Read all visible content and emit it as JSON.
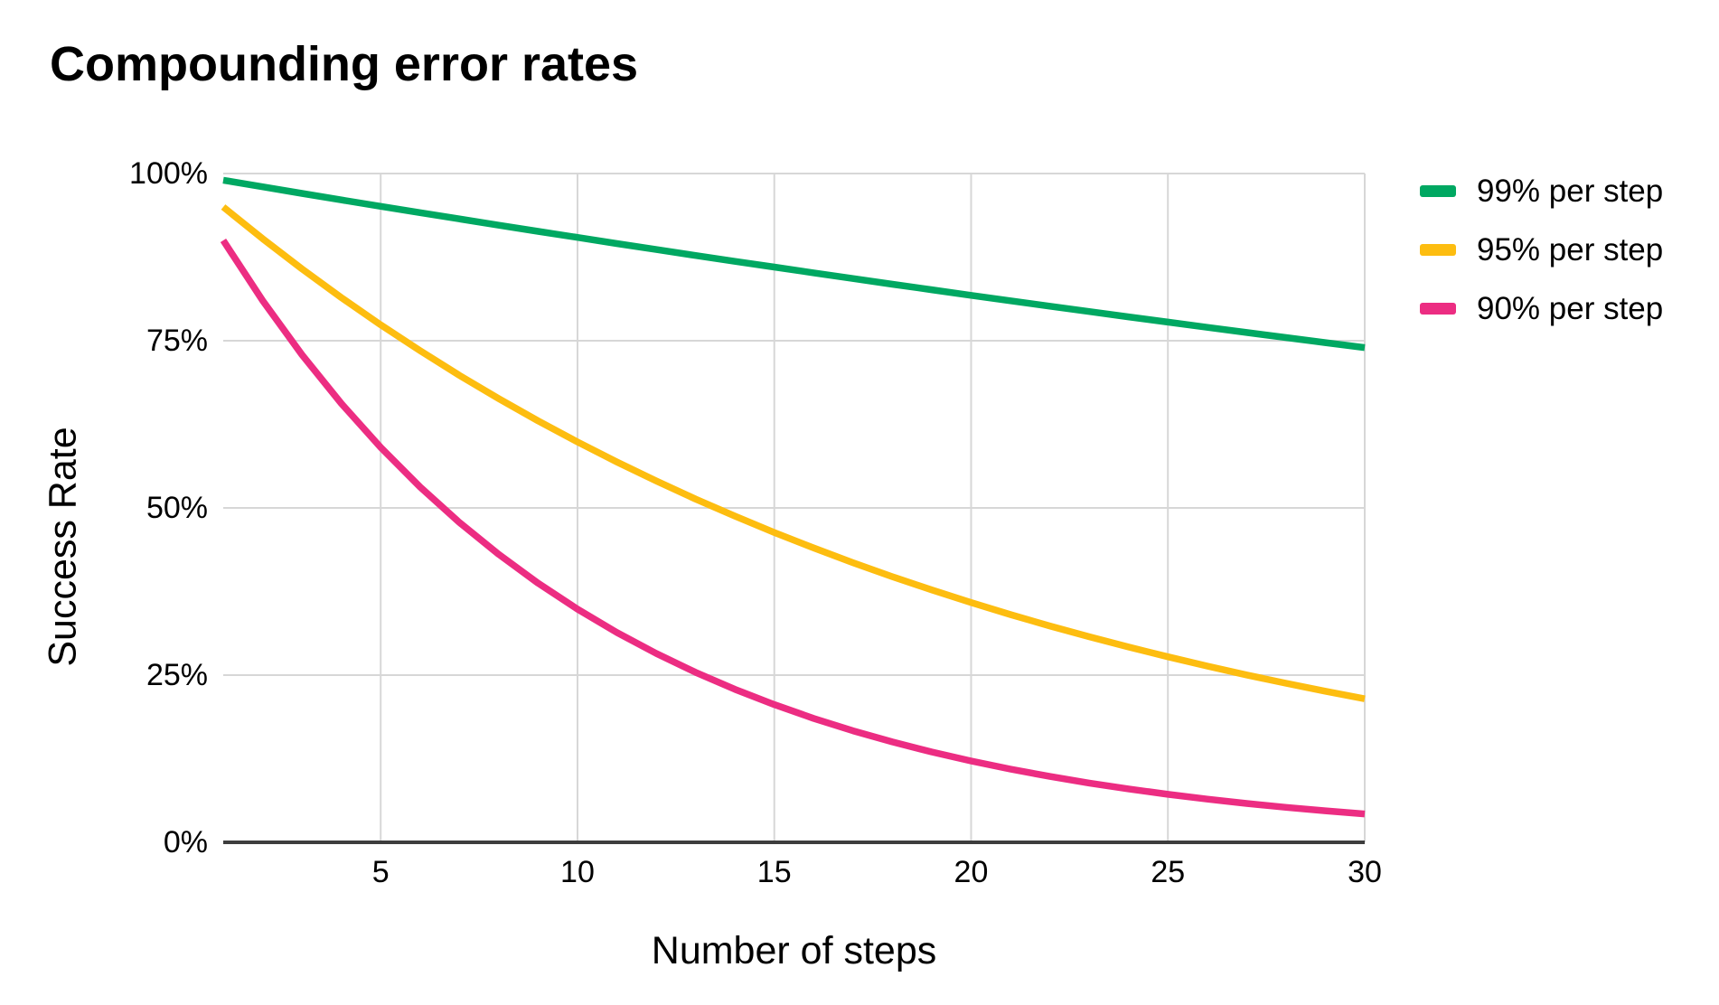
{
  "title": "Compounding error rates",
  "colors": {
    "background": "#ffffff",
    "grid": "#d7d7d7",
    "axis_line": "#3d3d3d",
    "text": "#000000",
    "series_green": "#00a862",
    "series_yellow": "#fdbd10",
    "series_pink": "#ec2d82"
  },
  "chart_data": {
    "type": "line",
    "title": "Compounding error rates",
    "xlabel": "Number of steps",
    "ylabel": "Success Rate",
    "xlim": [
      1,
      30
    ],
    "ylim": [
      0,
      100
    ],
    "grid": true,
    "legend_position": "right",
    "x_ticks": [
      5,
      10,
      15,
      20,
      25,
      30
    ],
    "y_tick_values": [
      100,
      75,
      50,
      25,
      0
    ],
    "y_tick_labels": [
      "100%",
      "75%",
      "50%",
      "25%",
      "0%"
    ],
    "x": [
      1,
      2,
      3,
      4,
      5,
      6,
      7,
      8,
      9,
      10,
      11,
      12,
      13,
      14,
      15,
      16,
      17,
      18,
      19,
      20,
      21,
      22,
      23,
      24,
      25,
      26,
      27,
      28,
      29,
      30
    ],
    "series": [
      {
        "name": "99% per step",
        "rate_per_step": 0.99,
        "color": "#00a862",
        "values": [
          99,
          98.01,
          97.03,
          96.06,
          95.1,
          94.15,
          93.21,
          92.27,
          91.35,
          90.44,
          89.53,
          88.64,
          87.75,
          86.87,
          86.01,
          85.15,
          84.3,
          83.45,
          82.62,
          81.79,
          80.97,
          80.16,
          79.36,
          78.57,
          77.78,
          77,
          76.23,
          75.47,
          74.72,
          73.97
        ]
      },
      {
        "name": "95% per step",
        "rate_per_step": 0.95,
        "color": "#fdbd10",
        "values": [
          95,
          90.25,
          85.74,
          81.45,
          77.38,
          73.51,
          69.83,
          66.34,
          63.02,
          59.87,
          56.88,
          54.04,
          51.33,
          48.77,
          46.33,
          44.01,
          41.81,
          39.72,
          37.74,
          35.85,
          34.06,
          32.35,
          30.74,
          29.2,
          27.74,
          26.35,
          25.03,
          23.78,
          22.59,
          21.46
        ]
      },
      {
        "name": "90% per step",
        "rate_per_step": 0.9,
        "color": "#ec2d82",
        "values": [
          90,
          81,
          72.9,
          65.61,
          59.05,
          53.14,
          47.83,
          43.05,
          38.74,
          34.87,
          31.38,
          28.24,
          25.42,
          22.88,
          20.59,
          18.53,
          16.68,
          15.01,
          13.51,
          12.16,
          10.94,
          9.85,
          8.86,
          7.98,
          7.18,
          6.46,
          5.81,
          5.23,
          4.71,
          4.24
        ]
      }
    ]
  }
}
